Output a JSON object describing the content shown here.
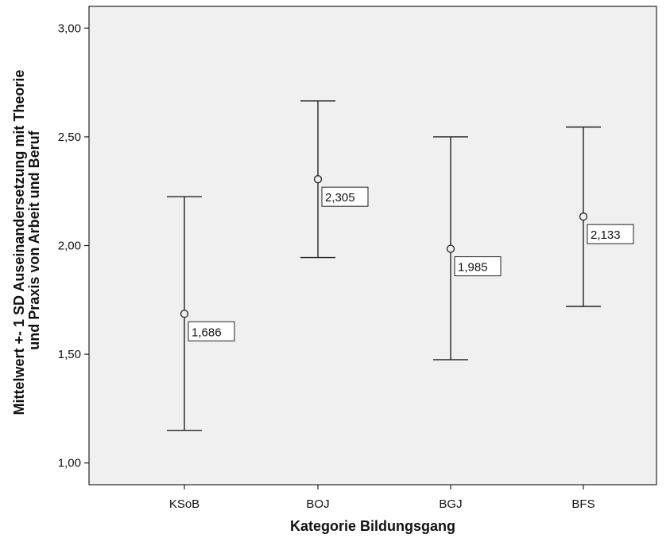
{
  "chart_data": {
    "type": "errorbar",
    "xlabel": "Kategorie Bildungsgang",
    "ylabel_lines": [
      "Mittelwert +- 1 SD Auseinandersetzung mit Theorie",
      "und Praxis von Arbeit und Beruf"
    ],
    "ylim": [
      0.9,
      3.1
    ],
    "yticks": [
      1.0,
      1.5,
      2.0,
      2.5,
      3.0
    ],
    "ytick_labels": [
      "1,00",
      "1,50",
      "2,00",
      "2,50",
      "3,00"
    ],
    "categories": [
      "KSoB",
      "BOJ",
      "BGJ",
      "BFS"
    ],
    "means": [
      1.686,
      2.305,
      1.985,
      2.133
    ],
    "mean_labels": [
      "1,686",
      "2,305",
      "1,985",
      "2,133"
    ],
    "lower": [
      1.15,
      1.945,
      1.475,
      1.72
    ],
    "upper": [
      2.225,
      2.665,
      2.5,
      2.545
    ],
    "grid": false,
    "colors": {
      "plot_background": "#f0f0f0",
      "axis": "#222222",
      "marks": "#222222"
    }
  }
}
